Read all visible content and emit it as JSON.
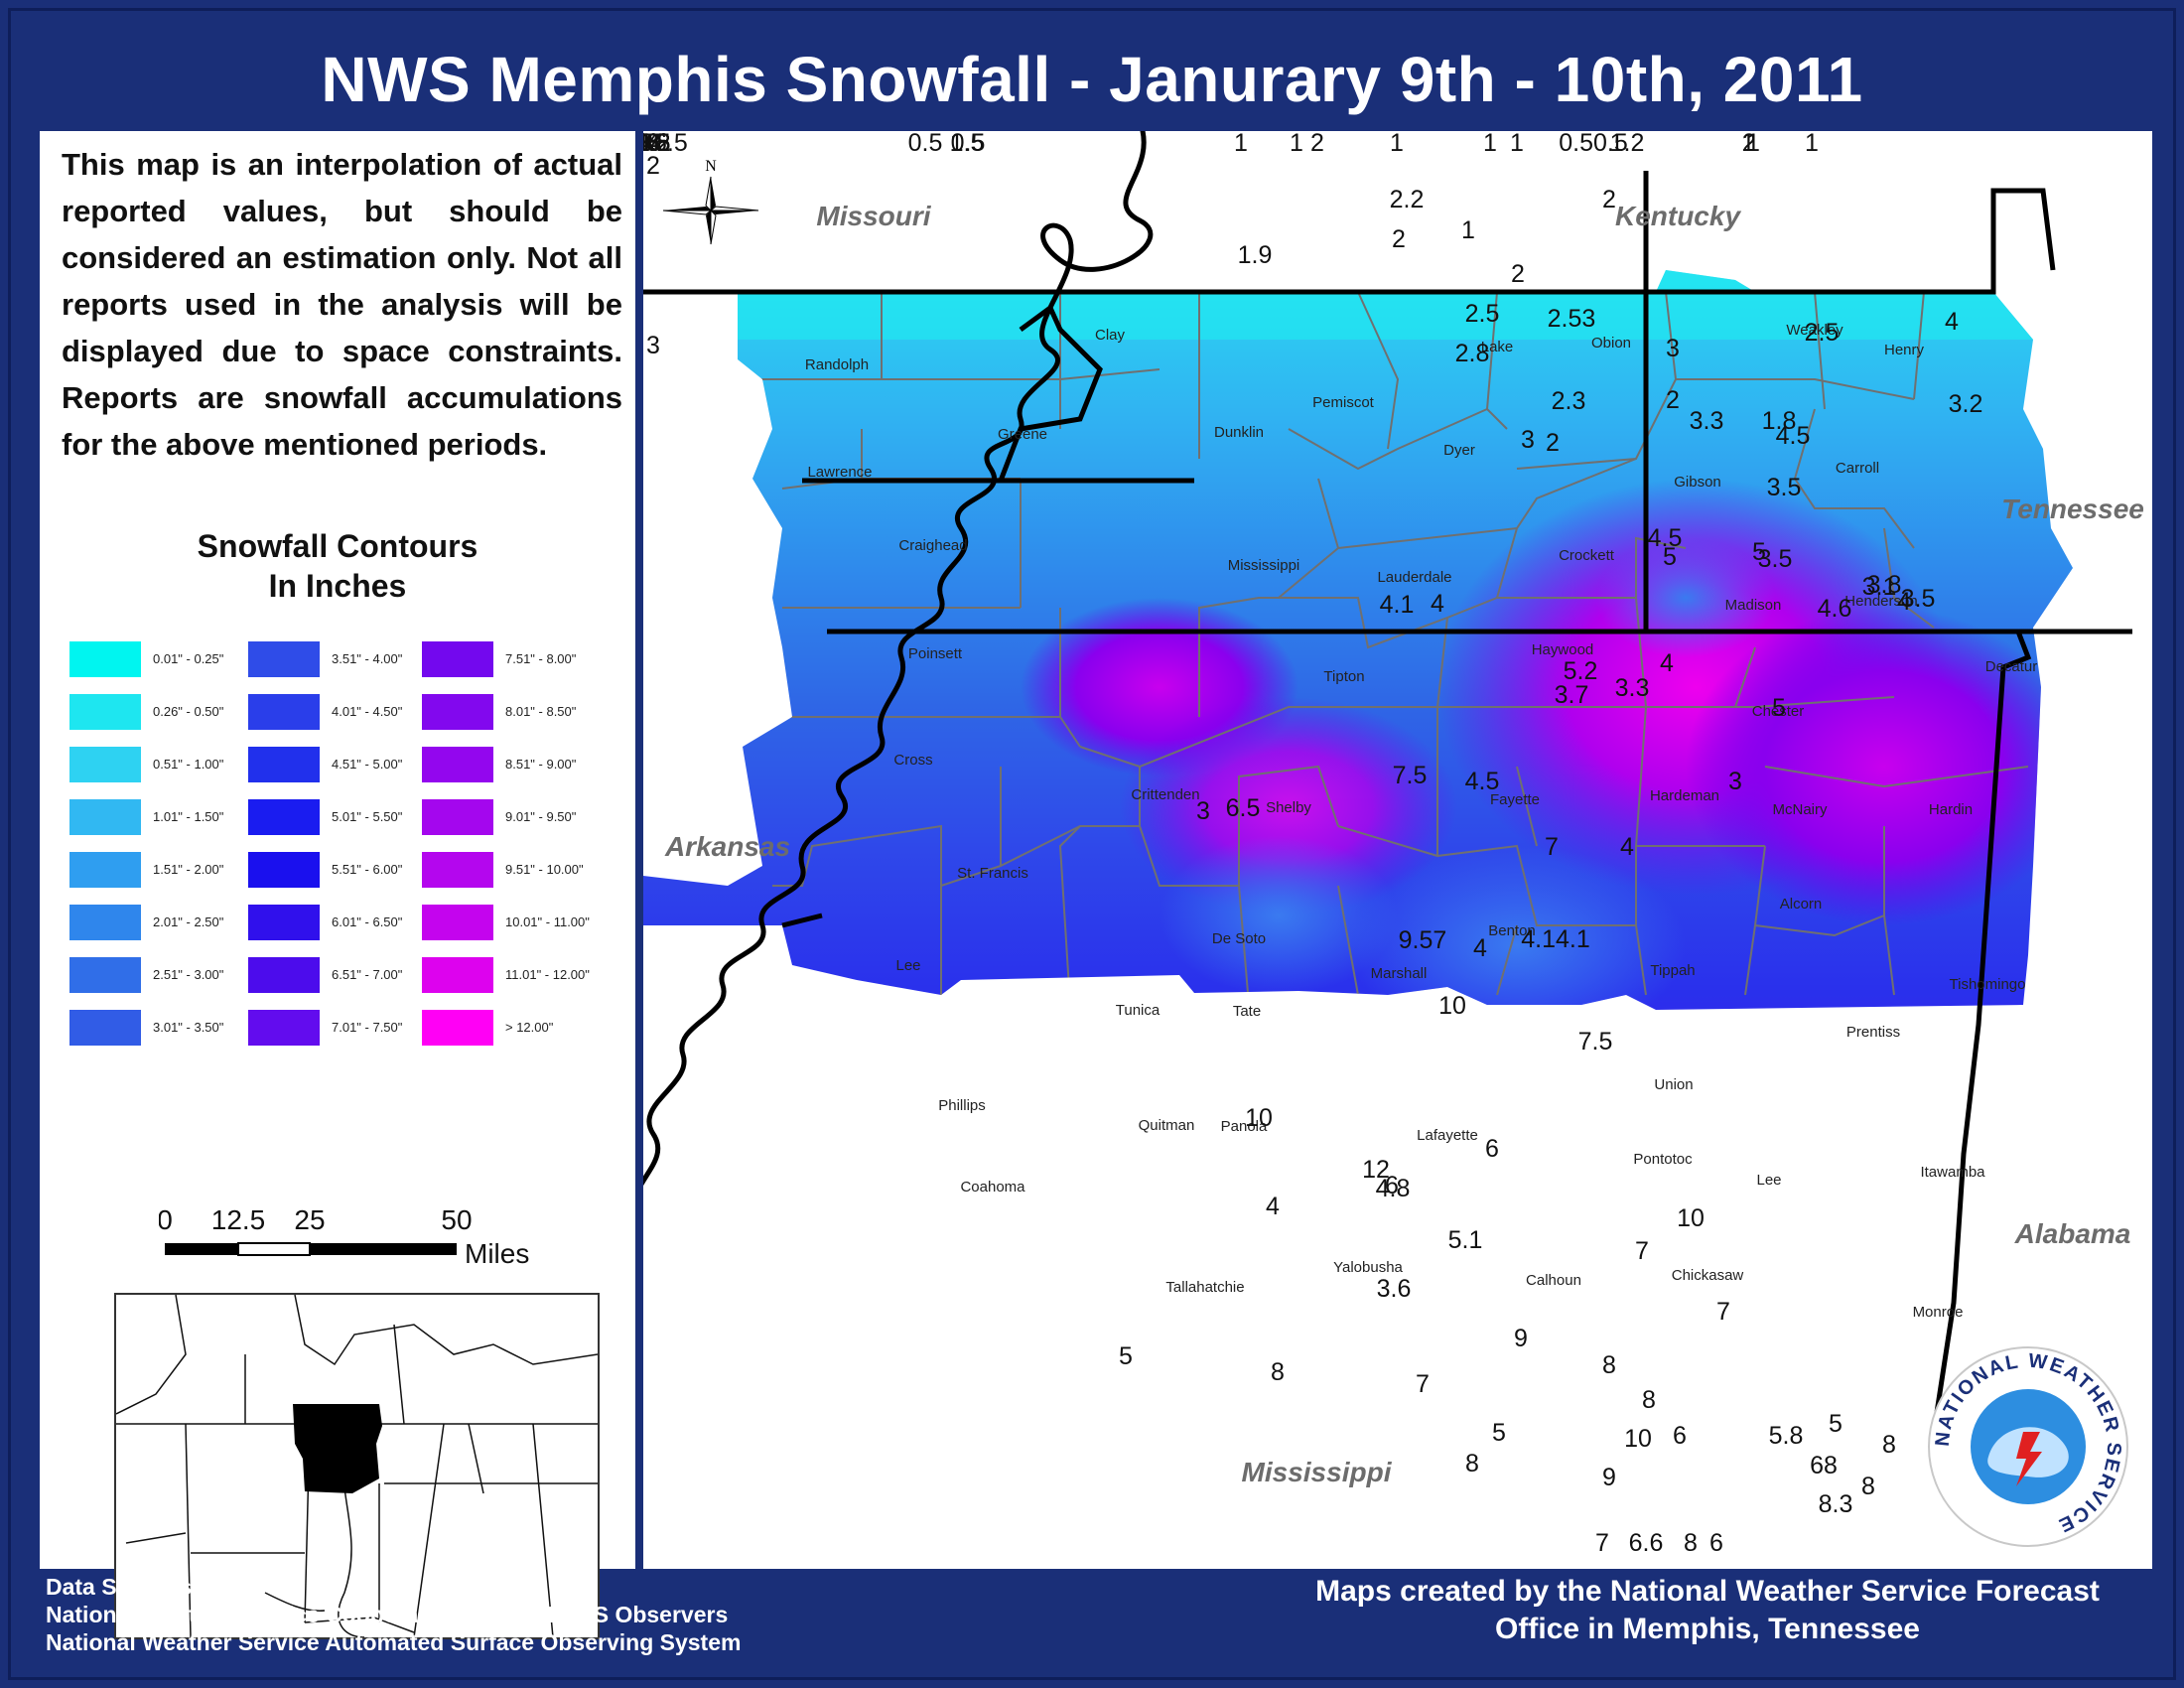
{
  "title": "NWS Memphis Snowfall - Janurary 9th - 10th, 2011",
  "description": "This map is an interpolation of actual reported values, but should be considered an estimation only. Not all reports used in the analysis will be displayed due to space constraints. Reports are snowfall accumulations for the above mentioned periods.",
  "legend": {
    "title_line1": "Snowfall Contours",
    "title_line2": "In Inches",
    "items": [
      {
        "label": "0.01\" - 0.25\"",
        "color": "#00f5f0"
      },
      {
        "label": "0.26\" - 0.50\"",
        "color": "#1ee6f0"
      },
      {
        "label": "0.51\" - 1.00\"",
        "color": "#2ed2f2"
      },
      {
        "label": "1.01\" - 1.50\"",
        "color": "#31b8f2"
      },
      {
        "label": "1.51\" - 2.00\"",
        "color": "#2f9ef0"
      },
      {
        "label": "2.01\" - 2.50\"",
        "color": "#2f86ec"
      },
      {
        "label": "2.51\" - 3.00\"",
        "color": "#306ee8"
      },
      {
        "label": "3.01\" - 3.50\"",
        "color": "#315ce6"
      },
      {
        "label": "3.51\" - 4.00\"",
        "color": "#2f4ce8"
      },
      {
        "label": "4.01\" - 4.50\"",
        "color": "#2a3eea"
      },
      {
        "label": "4.51\" - 5.00\"",
        "color": "#2130ec"
      },
      {
        "label": "5.01\" - 5.50\"",
        "color": "#1a1cf0"
      },
      {
        "label": "5.51\" - 6.00\"",
        "color": "#1a10ee"
      },
      {
        "label": "6.01\" - 6.50\"",
        "color": "#3010ec"
      },
      {
        "label": "6.51\" - 7.00\"",
        "color": "#4c0cec"
      },
      {
        "label": "7.01\" - 7.50\"",
        "color": "#620cee"
      },
      {
        "label": "7.51\" - 8.00\"",
        "color": "#7308ee"
      },
      {
        "label": "8.01\" - 8.50\"",
        "color": "#8208ee"
      },
      {
        "label": "8.51\" - 9.00\"",
        "color": "#9306ee"
      },
      {
        "label": "9.01\" - 9.50\"",
        "color": "#a406ee"
      },
      {
        "label": "9.51\" - 10.00\"",
        "color": "#b406ee"
      },
      {
        "label": "10.01\" - 11.00\"",
        "color": "#c404ee"
      },
      {
        "label": "11.01\" - 12.00\"",
        "color": "#dd02ee"
      },
      {
        "label": "> 12.00\"",
        "color": "#ff00f5"
      }
    ]
  },
  "scale": {
    "ticks": [
      "0",
      "12.5",
      "25",
      "50"
    ],
    "unit": "Miles"
  },
  "states": {
    "missouri": "Missouri",
    "kentucky": "Kentucky",
    "tennessee": "Tennessee",
    "arkansas": "Arkansas",
    "alabama": "Alabama",
    "mississippi": "Mississippi"
  },
  "counties": [
    "Randolph",
    "Clay",
    "Dunklin",
    "Pemiscot",
    "Lake",
    "Obion",
    "Weakley",
    "Henry",
    "Greene",
    "Lawrence",
    "Dyer",
    "Gibson",
    "Carroll",
    "Craighead",
    "Mississippi",
    "Lauderdale",
    "Crockett",
    "Madison",
    "Henderson",
    "Decatur",
    "Poinsett",
    "Tipton",
    "Haywood",
    "Chester",
    "Cross",
    "Crittenden",
    "Shelby",
    "Fayette",
    "Hardeman",
    "McNairy",
    "Hardin",
    "St. Francis",
    "Lee",
    "De Soto",
    "Marshall",
    "Benton",
    "Tippah",
    "Alcorn",
    "Tishomingo",
    "Tunica",
    "Tate",
    "Prentiss",
    "Phillips",
    "Quitman",
    "Panola",
    "Lafayette",
    "Union",
    "Pontotoc",
    "Lee",
    "Itawamba",
    "Coahoma",
    "Yalobusha",
    "Calhoun",
    "Chickasaw",
    "Tallahatchie",
    "Monroe"
  ],
  "reports": [
    "0.5",
    "0.5",
    "0.5",
    "0.5",
    "1",
    "1",
    "0.50.5",
    "1",
    "1",
    "1",
    "0.8",
    "1",
    "1",
    "2",
    "1.8",
    "2",
    "2",
    "1.5",
    "1",
    "1.2",
    "2",
    "1",
    "2",
    "2",
    "1.9",
    "2.2",
    "3",
    "2.53",
    "2.5",
    "3",
    "2.5",
    "2",
    "2.8",
    "2.3",
    "3.2",
    "4",
    "3",
    "2",
    "3.3",
    "1.8",
    "3.5",
    "4.5",
    "4.5",
    "5",
    "3.3",
    "3.7",
    "3.5",
    "3.8",
    "3.5",
    "3.1",
    "4.6",
    "4",
    "5",
    "4",
    "5.2",
    "5",
    "4.1",
    "4",
    "4.5",
    "3",
    "7.5",
    "7",
    "6.5",
    "3",
    "4",
    "4.14.1",
    "9.57",
    "4",
    "6",
    "4.8",
    "12",
    "7.5",
    "10",
    "10",
    "4",
    "6",
    "5.1",
    "7",
    "7",
    "10",
    "3.6",
    "5",
    "9",
    "8",
    "8",
    "8",
    "7",
    "5",
    "8",
    "10",
    "6",
    "5.8",
    "68",
    "5",
    "9",
    "6.6",
    "8",
    "8",
    "8.3",
    "8",
    "6",
    "7",
    "8",
    "7",
    "6",
    "6",
    "4.36.5",
    "3.2",
    "4.8",
    "4"
  ],
  "footer": {
    "sources_title": "Data Sources:",
    "sources_line1": "National Weather Service Cooperative & CoCoRaHS Observers",
    "sources_line2": "National Weather Service Automated Surface Observing System",
    "credit_line1": "Maps created by the National Weather Service Forecast",
    "credit_line2": "Office in Memphis, Tennessee"
  },
  "logo_text": "NATIONAL WEATHER SERVICE",
  "north_label": "N"
}
